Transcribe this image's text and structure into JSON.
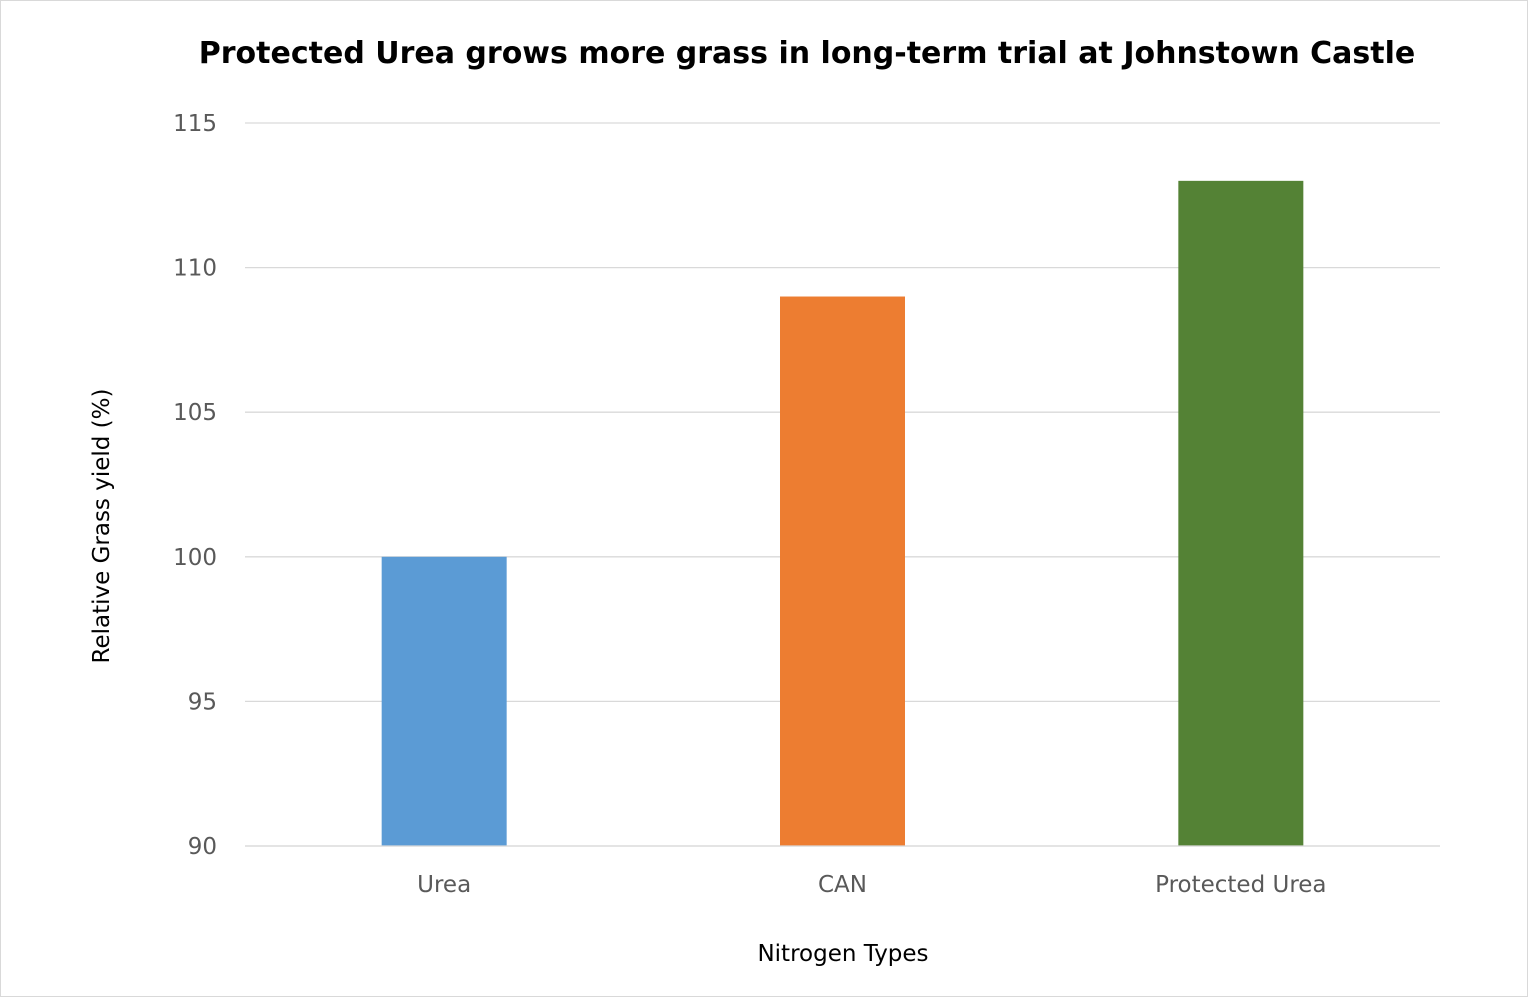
{
  "chart_data": {
    "type": "bar",
    "title": "Protected Urea grows more grass in long-term trial at Johnstown Castle",
    "xlabel": "Nitrogen Types",
    "ylabel": "Relative Grass yield (%)",
    "categories": [
      "Urea",
      "CAN",
      "Protected Urea"
    ],
    "values": [
      100,
      109,
      113
    ],
    "colors": [
      "#5b9bd5",
      "#ed7d31",
      "#548235"
    ],
    "ylim": [
      90,
      115
    ],
    "yticks": [
      90,
      95,
      100,
      105,
      110,
      115
    ],
    "grid": true,
    "legend": "none"
  }
}
